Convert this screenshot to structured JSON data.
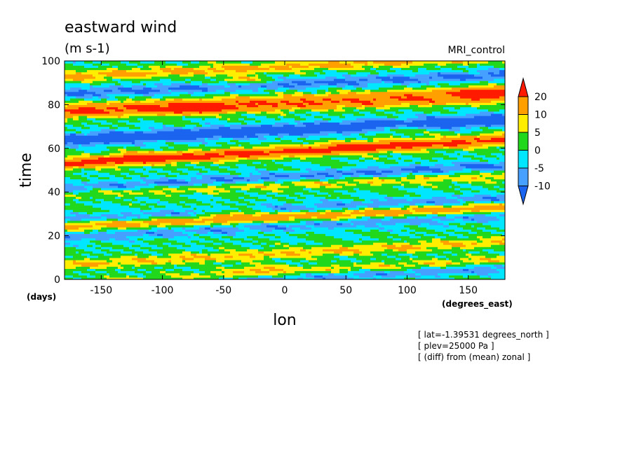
{
  "chart_data": {
    "type": "heatmap",
    "title": "eastward wind",
    "units": "(m s-1)",
    "dataset": "MRI_control",
    "xlabel": "lon",
    "ylabel": "time",
    "x_units": "(degrees_east)",
    "y_units": "(days)",
    "xlim": [
      -180,
      180
    ],
    "ylim": [
      0,
      100
    ],
    "x_ticks": [
      -150,
      -100,
      -50,
      0,
      50,
      100,
      150
    ],
    "x_tick_labels": [
      "-150",
      "-100",
      "-50",
      "0",
      "50",
      "100",
      "150"
    ],
    "y_ticks": [
      0,
      20,
      40,
      60,
      80,
      100
    ],
    "y_tick_labels": [
      "0",
      "20",
      "40",
      "60",
      "80",
      "100"
    ],
    "colorbar": {
      "levels": [
        -10,
        -5,
        0,
        5,
        10,
        20
      ],
      "level_labels": [
        "-10",
        "-5",
        "0",
        "5",
        "10",
        "20"
      ],
      "colors": [
        "#1a64f0",
        "#46a0ff",
        "#00e6ff",
        "#22d81c",
        "#ffee00",
        "#ffa000",
        "#ff1a00"
      ],
      "under_color": "#1a64f0",
      "over_color": "#ff1a00"
    },
    "shaded_bands": [
      {
        "t0": 2,
        "lon0": -40,
        "slope": 0.32,
        "sign": 1,
        "amp": 9
      },
      {
        "t0": 4,
        "lon0": 120,
        "slope": 0.26,
        "sign": -1,
        "amp": 9
      },
      {
        "t0": 13,
        "lon0": 30,
        "slope": 0.3,
        "sign": 1,
        "amp": 10
      },
      {
        "t0": 21,
        "lon0": -120,
        "slope": 0.28,
        "sign": -1,
        "amp": 8
      },
      {
        "t0": 28,
        "lon0": -40,
        "slope": 0.24,
        "sign": 1,
        "amp": 15
      },
      {
        "t0": 34,
        "lon0": 60,
        "slope": 0.28,
        "sign": -1,
        "amp": 9
      },
      {
        "t0": 40,
        "lon0": -160,
        "slope": 0.22,
        "sign": 1,
        "amp": 8
      },
      {
        "t0": 47,
        "lon0": 0,
        "slope": 0.3,
        "sign": -1,
        "amp": 11
      },
      {
        "t0": 55,
        "lon0": -110,
        "slope": 0.28,
        "sign": 1,
        "amp": 11
      },
      {
        "t0": 61,
        "lon0": 60,
        "slope": 0.32,
        "sign": 1,
        "amp": 14
      },
      {
        "t0": 66,
        "lon0": -60,
        "slope": 0.26,
        "sign": -1,
        "amp": 10
      },
      {
        "t0": 72,
        "lon0": 90,
        "slope": 0.26,
        "sign": -1,
        "amp": 10
      },
      {
        "t0": 78,
        "lon0": -80,
        "slope": 0.2,
        "sign": 1,
        "amp": 16
      },
      {
        "t0": 86,
        "lon0": 160,
        "slope": 0.22,
        "sign": 1,
        "amp": 14
      },
      {
        "t0": 91,
        "lon0": 60,
        "slope": 0.24,
        "sign": -1,
        "amp": 11
      },
      {
        "t0": 96,
        "lon0": -60,
        "slope": 0.25,
        "sign": 1,
        "amp": 12
      }
    ],
    "hot_spots": [
      {
        "lon": -75,
        "t": 78,
        "amp": 15
      },
      {
        "lon": -35,
        "t": 91,
        "amp": 12
      },
      {
        "lon": 160,
        "t": 86,
        "amp": 12
      },
      {
        "lon": 95,
        "t": 69,
        "amp": 10
      },
      {
        "lon": 60,
        "t": 61,
        "amp": 10
      },
      {
        "lon": -40,
        "t": 31,
        "amp": 12
      },
      {
        "lon": -120,
        "t": 57,
        "amp": 9
      },
      {
        "lon": -20,
        "t": 5,
        "amp": 8
      }
    ],
    "notes": [
      "[ lat=-1.39531 degrees_north ]",
      "[ plev=25000 Pa ]",
      "[ (diff) from (mean) zonal ]"
    ]
  }
}
